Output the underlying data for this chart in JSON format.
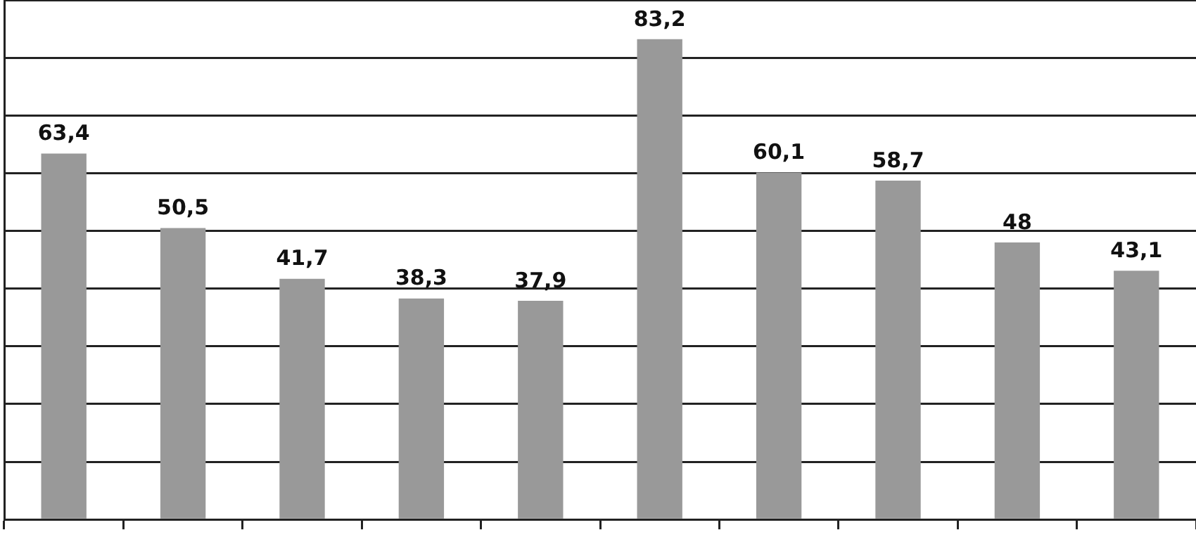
{
  "chart_data": {
    "type": "bar",
    "categories": [
      null,
      null,
      null,
      null,
      null,
      null,
      null,
      null,
      null,
      null
    ],
    "values": [
      63.4,
      50.5,
      41.7,
      38.3,
      37.9,
      83.2,
      60.1,
      58.7,
      48,
      43.1
    ],
    "value_labels": [
      "63,4",
      "50,5",
      "41,7",
      "38,3",
      "37,9",
      "83,2",
      "60,1",
      "58,7",
      "48",
      "43,1"
    ],
    "color": "#999999",
    "ylim": [
      0,
      90
    ],
    "grid": "y"
  }
}
